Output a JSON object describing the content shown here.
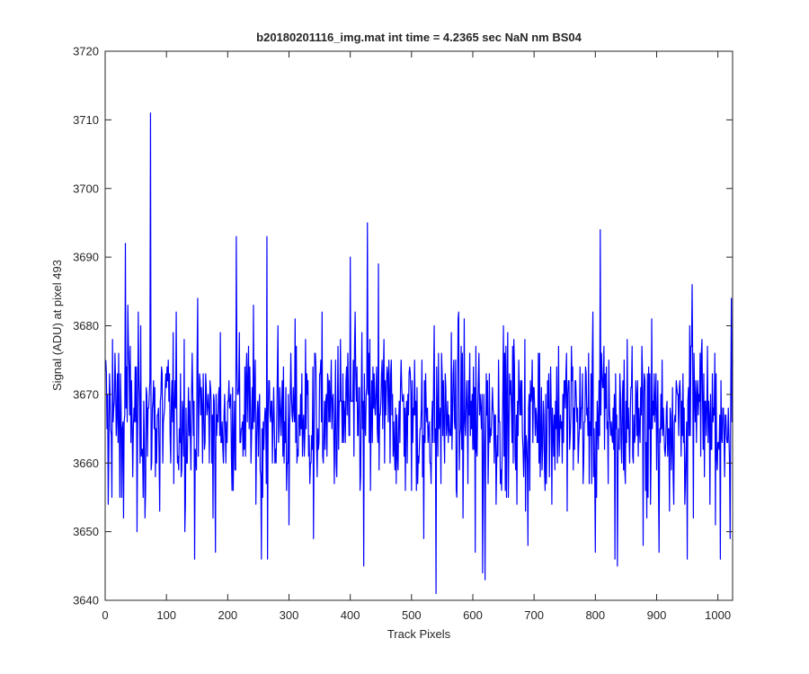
{
  "chart_data": {
    "type": "line",
    "title": "b20180201116_img.mat int time = 4.2365 sec  NaN nm BS04",
    "xlabel": "Track Pixels",
    "ylabel": "Signal (ADU) at pixel 493",
    "xlim": [
      0,
      1024
    ],
    "ylim": [
      3640,
      3720
    ],
    "xticks": [
      0,
      100,
      200,
      300,
      400,
      500,
      600,
      700,
      800,
      900,
      1000
    ],
    "yticks": [
      3640,
      3650,
      3660,
      3670,
      3680,
      3690,
      3700,
      3710,
      3720
    ],
    "grid": false,
    "series": [
      {
        "color": "#0000ff",
        "x_start": 1,
        "x_step": 1,
        "count": 1024,
        "mean": 3667,
        "std": 6,
        "peaks": [
          {
            "x": 5,
            "y": 3654
          },
          {
            "x": 12,
            "y": 3678
          },
          {
            "x": 24,
            "y": 3655
          },
          {
            "x": 30,
            "y": 3652
          },
          {
            "x": 33,
            "y": 3692
          },
          {
            "x": 37,
            "y": 3683
          },
          {
            "x": 52,
            "y": 3650
          },
          {
            "x": 65,
            "y": 3652
          },
          {
            "x": 74,
            "y": 3711
          },
          {
            "x": 89,
            "y": 3653
          },
          {
            "x": 130,
            "y": 3650
          },
          {
            "x": 146,
            "y": 3646
          },
          {
            "x": 180,
            "y": 3647
          },
          {
            "x": 214,
            "y": 3693
          },
          {
            "x": 255,
            "y": 3646
          },
          {
            "x": 264,
            "y": 3693
          },
          {
            "x": 265,
            "y": 3646
          },
          {
            "x": 300,
            "y": 3651
          },
          {
            "x": 340,
            "y": 3649
          },
          {
            "x": 378,
            "y": 3658
          },
          {
            "x": 400,
            "y": 3690
          },
          {
            "x": 422,
            "y": 3645
          },
          {
            "x": 428,
            "y": 3695
          },
          {
            "x": 446,
            "y": 3689
          },
          {
            "x": 520,
            "y": 3649
          },
          {
            "x": 540,
            "y": 3641
          },
          {
            "x": 604,
            "y": 3647
          },
          {
            "x": 616,
            "y": 3644
          },
          {
            "x": 620,
            "y": 3643
          },
          {
            "x": 690,
            "y": 3648
          },
          {
            "x": 800,
            "y": 3647
          },
          {
            "x": 808,
            "y": 3694
          },
          {
            "x": 832,
            "y": 3646
          },
          {
            "x": 836,
            "y": 3645
          },
          {
            "x": 878,
            "y": 3648
          },
          {
            "x": 904,
            "y": 3647
          },
          {
            "x": 950,
            "y": 3646
          },
          {
            "x": 958,
            "y": 3686
          },
          {
            "x": 1004,
            "y": 3646
          },
          {
            "x": 1020,
            "y": 3649
          },
          {
            "x": 1022,
            "y": 3684
          }
        ]
      }
    ]
  }
}
